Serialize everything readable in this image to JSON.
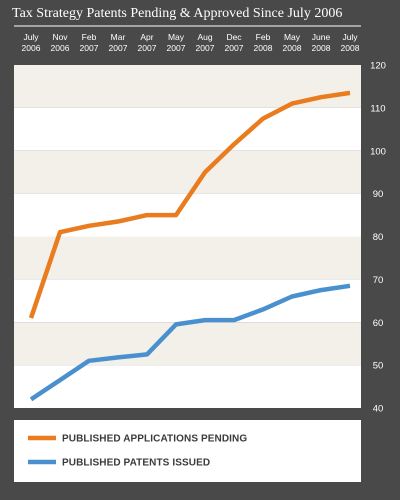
{
  "chart_data": {
    "type": "line",
    "title": "Tax Strategy Patents Pending & Approved Since July 2006",
    "categories": [
      [
        "July",
        "2006"
      ],
      [
        "Nov",
        "2006"
      ],
      [
        "Feb",
        "2007"
      ],
      [
        "Mar",
        "2007"
      ],
      [
        "Apr",
        "2007"
      ],
      [
        "May",
        "2007"
      ],
      [
        "Aug",
        "2007"
      ],
      [
        "Dec",
        "2007"
      ],
      [
        "Feb",
        "2008"
      ],
      [
        "May",
        "2008"
      ],
      [
        "June",
        "2008"
      ],
      [
        "July",
        "2008"
      ]
    ],
    "y_ticks": [
      "120",
      "110",
      "100",
      "90",
      "80",
      "70",
      "60",
      "50",
      "40"
    ],
    "ylim": [
      40,
      120
    ],
    "grid": "horizontal bands",
    "legend_position": "bottom",
    "series": [
      {
        "name": "PUBLISHED APPLICATIONS PENDING",
        "color": "#e87c1e",
        "values": [
          61,
          81,
          82.5,
          83.5,
          85,
          85,
          95,
          101.5,
          107.5,
          111,
          112.5,
          113.5
        ]
      },
      {
        "name": "PUBLISHED PATENTS ISSUED",
        "color": "#4a90cf",
        "values": [
          42,
          46.5,
          51,
          51.8,
          52.5,
          59.5,
          60.5,
          60.5,
          63,
          66,
          67.5,
          68.5
        ]
      }
    ]
  },
  "colors": {
    "background": "#4a4949",
    "band_light": "#f3f0ea",
    "band_white": "#ffffff",
    "header_rule": "#ffffff"
  }
}
